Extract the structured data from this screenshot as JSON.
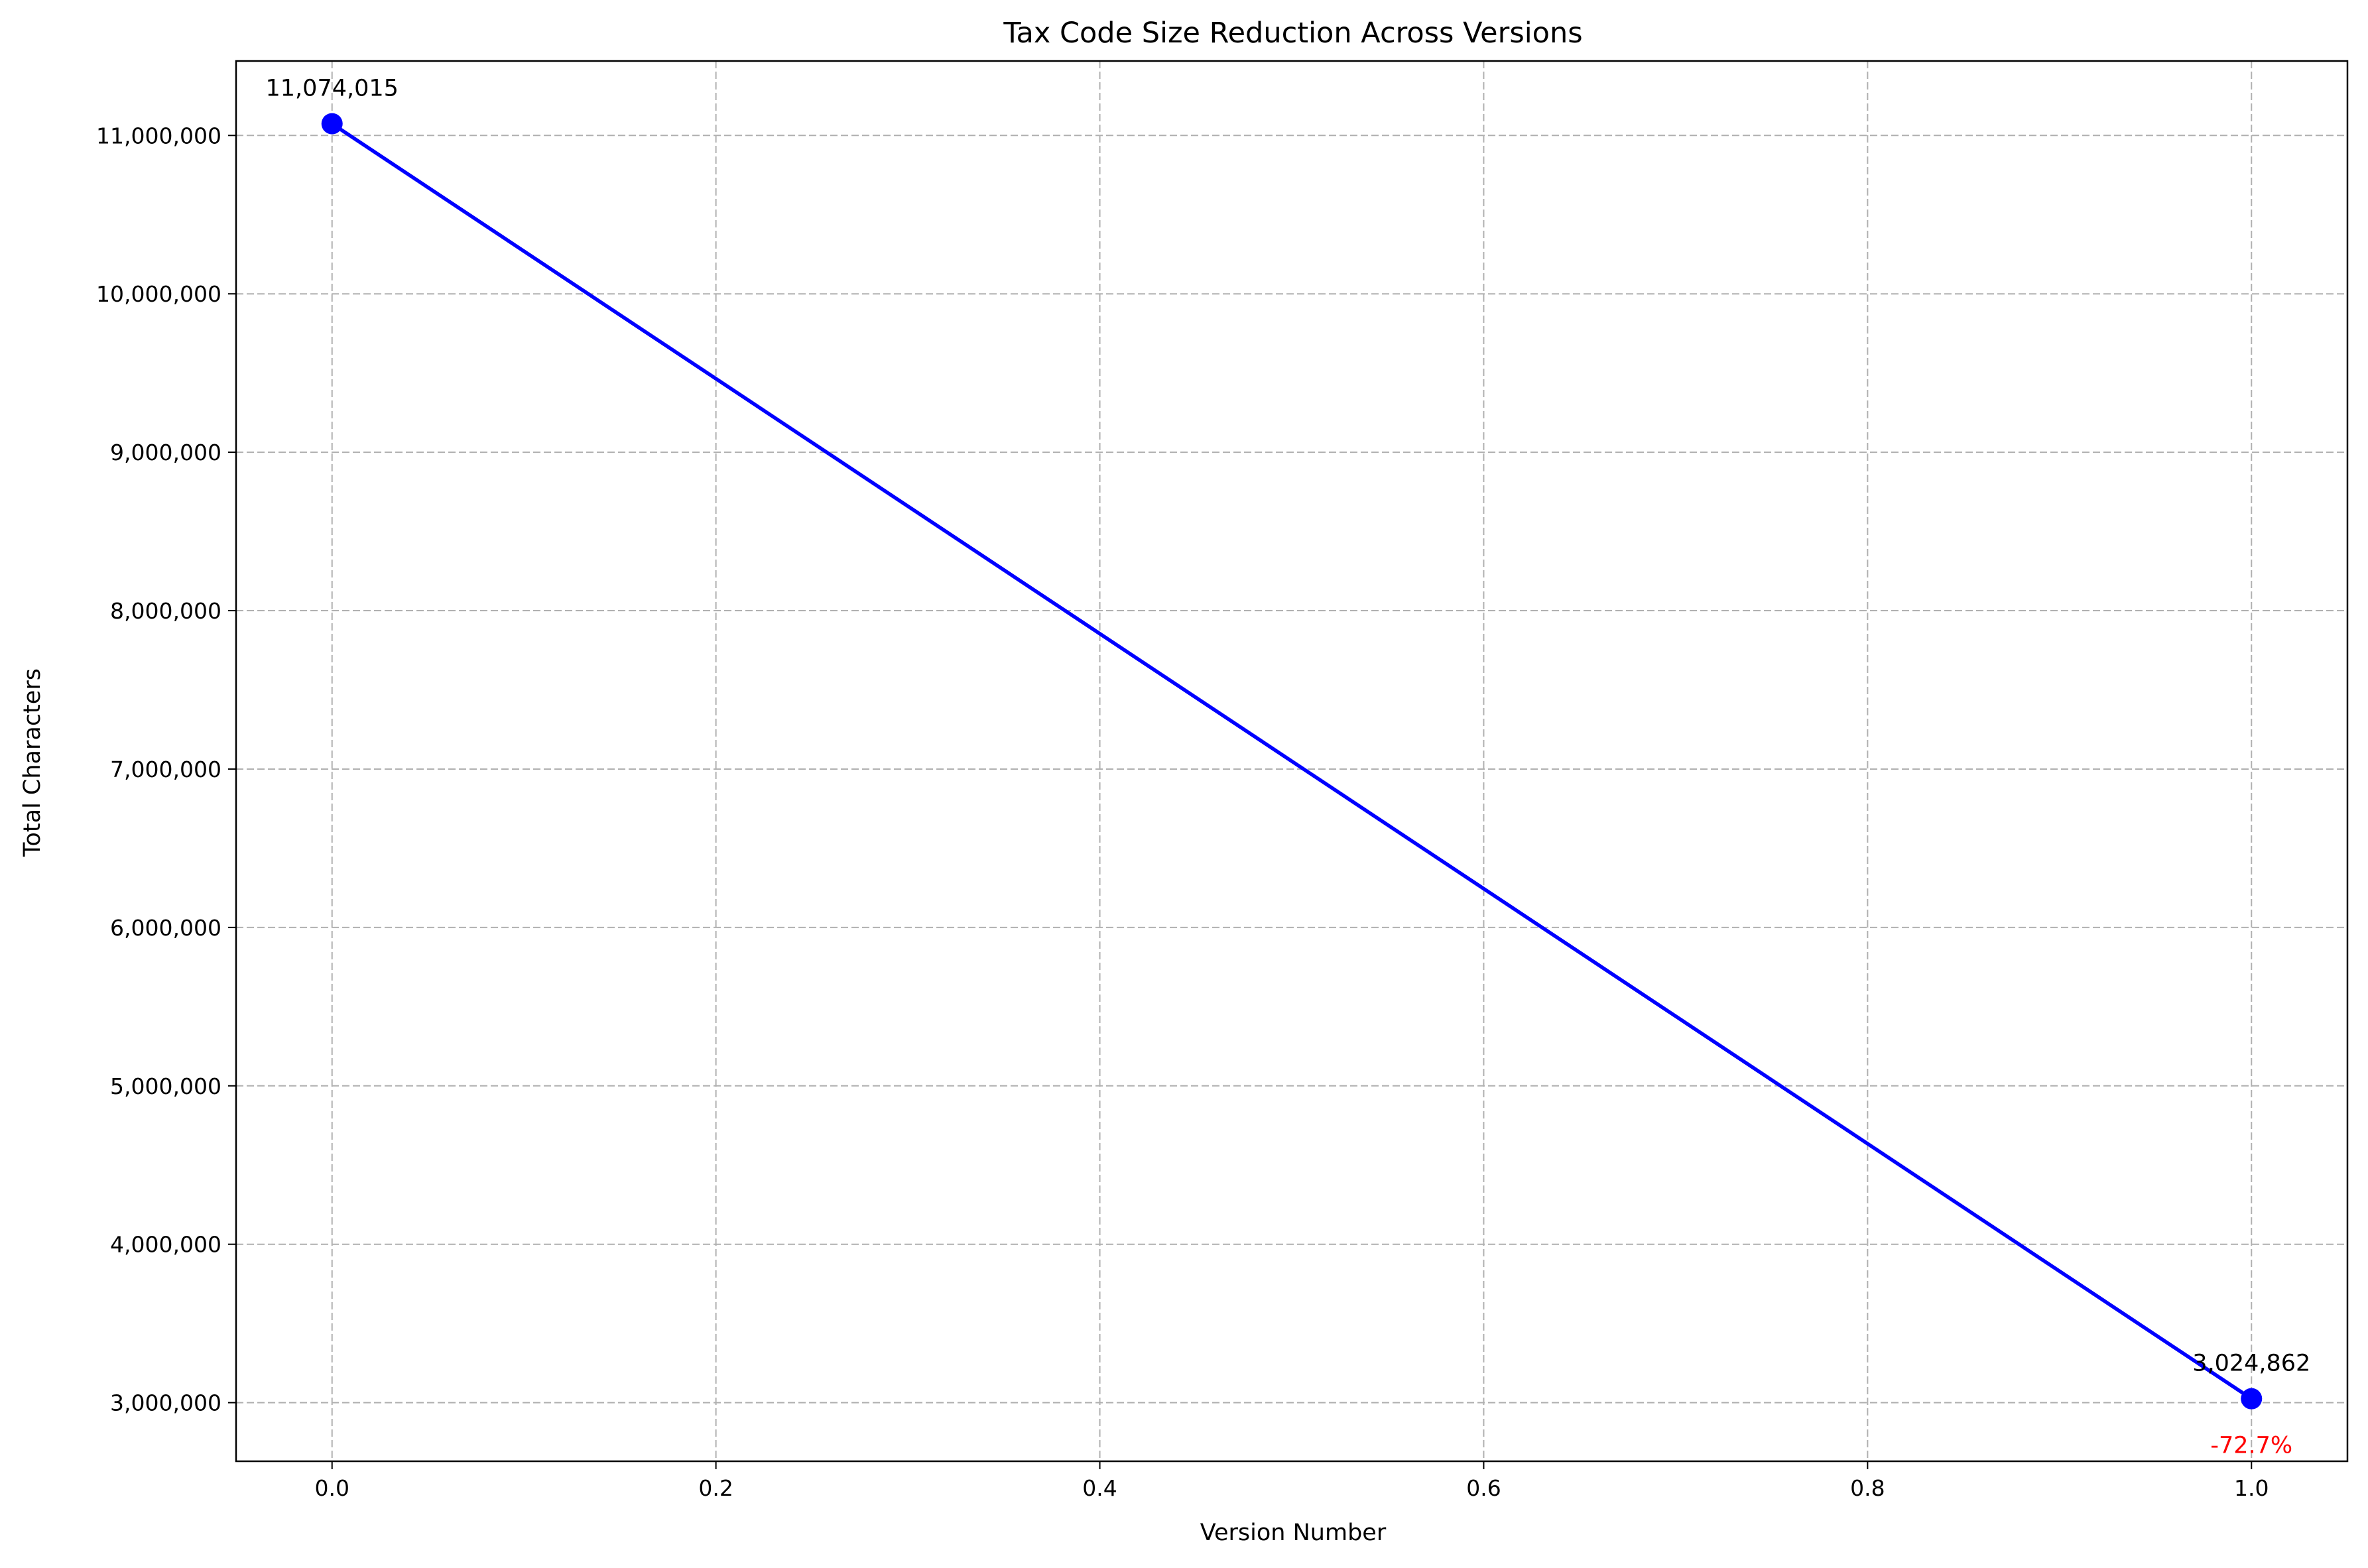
{
  "chart_data": {
    "type": "line",
    "title": "Tax Code Size Reduction Across Versions",
    "xlabel": "Version Number",
    "ylabel": "Total Characters",
    "xlim": [
      -0.05,
      1.05
    ],
    "ylim": [
      2630000,
      11470000
    ],
    "grid": true,
    "x_ticks": [
      0.0,
      0.2,
      0.4,
      0.6,
      0.8,
      1.0
    ],
    "x_tick_labels": [
      "0.0",
      "0.2",
      "0.4",
      "0.6",
      "0.8",
      "1.0"
    ],
    "y_ticks": [
      3000000,
      4000000,
      5000000,
      6000000,
      7000000,
      8000000,
      9000000,
      10000000,
      11000000
    ],
    "y_tick_labels": [
      "3,000,000",
      "4,000,000",
      "5,000,000",
      "6,000,000",
      "7,000,000",
      "8,000,000",
      "9,000,000",
      "10,000,000",
      "11,000,000"
    ],
    "series": [
      {
        "color": "#0000ff",
        "x": [
          0,
          1
        ],
        "y": [
          11074015,
          3024862
        ],
        "point_labels": [
          "11,074,015",
          "3,024,862"
        ]
      }
    ],
    "annotations": [
      {
        "x": 1,
        "y": 3024862,
        "text": "-72.7%",
        "color": "#ff0000"
      }
    ]
  }
}
